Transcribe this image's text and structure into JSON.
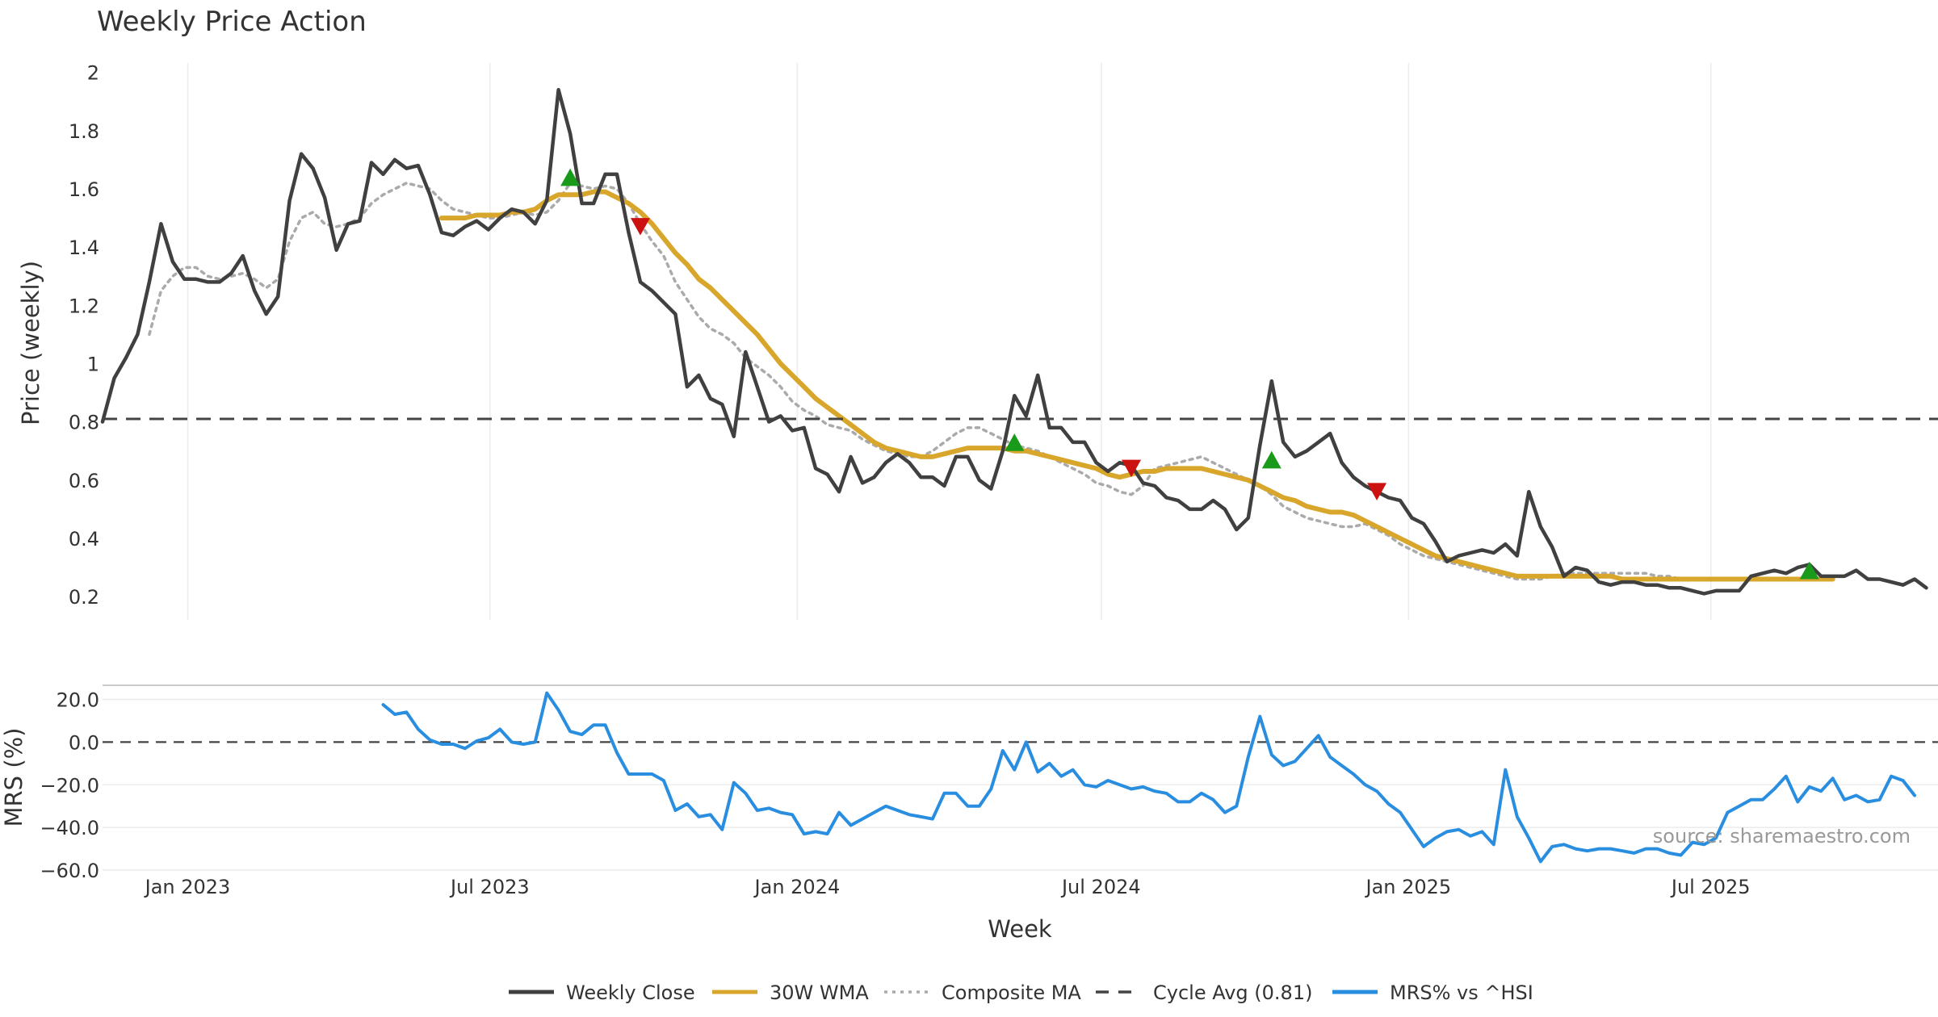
{
  "chart_data": [
    {
      "type": "line",
      "title": "Weekly Price Action",
      "ylabel": "Price (weekly)",
      "ylim": [
        0.12,
        2.06
      ],
      "yticks": [
        0.2,
        0.4,
        0.6,
        0.8,
        1,
        1.2,
        1.4,
        1.6,
        1.8,
        2
      ],
      "ytick_labels": [
        "0.2",
        "0.4",
        "0.6",
        "0.8",
        "1",
        "1.2",
        "1.4",
        "1.6",
        "1.8",
        "2"
      ],
      "x_start": "2022-11-11",
      "x_end": "2025-11-14",
      "x_step_weeks": 1,
      "series": [
        {
          "name": "Weekly Close",
          "color": "#404040",
          "values": [
            0.8,
            0.95,
            1.02,
            1.1,
            1.28,
            1.48,
            1.35,
            1.29,
            1.29,
            1.28,
            1.28,
            1.31,
            1.37,
            1.25,
            1.17,
            1.23,
            1.56,
            1.72,
            1.67,
            1.57,
            1.39,
            1.48,
            1.49,
            1.69,
            1.65,
            1.7,
            1.67,
            1.68,
            1.58,
            1.45,
            1.44,
            1.47,
            1.49,
            1.46,
            1.5,
            1.53,
            1.52,
            1.48,
            1.56,
            1.94,
            1.79,
            1.55,
            1.55,
            1.65,
            1.65,
            1.45,
            1.28,
            1.25,
            1.21,
            1.17,
            0.92,
            0.96,
            0.88,
            0.86,
            0.75,
            1.04,
            0.92,
            0.8,
            0.82,
            0.77,
            0.78,
            0.64,
            0.62,
            0.56,
            0.68,
            0.59,
            0.61,
            0.66,
            0.69,
            0.66,
            0.61,
            0.61,
            0.58,
            0.68,
            0.68,
            0.6,
            0.57,
            0.7,
            0.89,
            0.82,
            0.96,
            0.78,
            0.78,
            0.73,
            0.73,
            0.66,
            0.63,
            0.66,
            0.65,
            0.59,
            0.58,
            0.54,
            0.53,
            0.5,
            0.5,
            0.53,
            0.5,
            0.43,
            0.47,
            0.72,
            0.94,
            0.73,
            0.68,
            0.7,
            0.73,
            0.76,
            0.66,
            0.61,
            0.58,
            0.56,
            0.54,
            0.53,
            0.47,
            0.45,
            0.39,
            0.32,
            0.34,
            0.35,
            0.36,
            0.35,
            0.38,
            0.34,
            0.56,
            0.44,
            0.37,
            0.27,
            0.3,
            0.29,
            0.25,
            0.24,
            0.25,
            0.25,
            0.24,
            0.24,
            0.23,
            0.23,
            0.22,
            0.21,
            0.22,
            0.22,
            0.22,
            0.27,
            0.28,
            0.29,
            0.28,
            0.3,
            0.31,
            0.27,
            0.27,
            0.27,
            0.29,
            0.26,
            0.26,
            0.25,
            0.24,
            0.26,
            0.23
          ]
        },
        {
          "name": "30W WMA",
          "color": "#d8a62b",
          "start_index": 29,
          "values": [
            1.5,
            1.5,
            1.5,
            1.51,
            1.51,
            1.51,
            1.52,
            1.52,
            1.53,
            1.56,
            1.58,
            1.58,
            1.58,
            1.59,
            1.59,
            1.57,
            1.55,
            1.52,
            1.48,
            1.43,
            1.38,
            1.34,
            1.29,
            1.26,
            1.22,
            1.18,
            1.14,
            1.1,
            1.05,
            1.0,
            0.96,
            0.92,
            0.88,
            0.85,
            0.82,
            0.79,
            0.76,
            0.73,
            0.71,
            0.7,
            0.69,
            0.68,
            0.68,
            0.69,
            0.7,
            0.71,
            0.71,
            0.71,
            0.71,
            0.7,
            0.7,
            0.69,
            0.68,
            0.67,
            0.66,
            0.65,
            0.64,
            0.62,
            0.61,
            0.62,
            0.63,
            0.63,
            0.64,
            0.64,
            0.64,
            0.64,
            0.63,
            0.62,
            0.61,
            0.6,
            0.58,
            0.56,
            0.54,
            0.53,
            0.51,
            0.5,
            0.49,
            0.49,
            0.48,
            0.46,
            0.44,
            0.42,
            0.4,
            0.38,
            0.36,
            0.34,
            0.33,
            0.32,
            0.31,
            0.3,
            0.29,
            0.28,
            0.27,
            0.27,
            0.27,
            0.27,
            0.27,
            0.27,
            0.27,
            0.27,
            0.27,
            0.26,
            0.26,
            0.26,
            0.26,
            0.26,
            0.26,
            0.26,
            0.26,
            0.26,
            0.26,
            0.26,
            0.26,
            0.26,
            0.26,
            0.26,
            0.26,
            0.26,
            0.26,
            0.26
          ]
        },
        {
          "name": "Composite MA",
          "color": "#aaaaaa",
          "start_index": 4,
          "values": [
            1.1,
            1.25,
            1.3,
            1.33,
            1.33,
            1.3,
            1.29,
            1.3,
            1.31,
            1.29,
            1.26,
            1.29,
            1.42,
            1.5,
            1.52,
            1.48,
            1.47,
            1.48,
            1.5,
            1.55,
            1.58,
            1.6,
            1.62,
            1.61,
            1.6,
            1.56,
            1.53,
            1.52,
            1.51,
            1.5,
            1.5,
            1.51,
            1.52,
            1.51,
            1.52,
            1.56,
            1.62,
            1.61,
            1.6,
            1.61,
            1.6,
            1.55,
            1.48,
            1.42,
            1.37,
            1.28,
            1.22,
            1.16,
            1.12,
            1.1,
            1.07,
            1.02,
            0.99,
            0.96,
            0.92,
            0.87,
            0.84,
            0.82,
            0.79,
            0.78,
            0.77,
            0.74,
            0.72,
            0.7,
            0.69,
            0.68,
            0.68,
            0.7,
            0.73,
            0.76,
            0.78,
            0.78,
            0.76,
            0.74,
            0.72,
            0.71,
            0.7,
            0.68,
            0.66,
            0.64,
            0.62,
            0.59,
            0.58,
            0.56,
            0.55,
            0.58,
            0.64,
            0.65,
            0.66,
            0.67,
            0.68,
            0.66,
            0.64,
            0.62,
            0.6,
            0.58,
            0.55,
            0.51,
            0.49,
            0.47,
            0.46,
            0.45,
            0.44,
            0.44,
            0.45,
            0.43,
            0.41,
            0.38,
            0.36,
            0.34,
            0.33,
            0.32,
            0.31,
            0.3,
            0.29,
            0.28,
            0.27,
            0.26,
            0.26,
            0.26,
            0.27,
            0.28,
            0.28,
            0.28,
            0.28,
            0.28,
            0.28,
            0.28,
            0.28,
            0.27,
            0.27,
            0.26,
            0.26,
            0.26,
            0.26
          ]
        },
        {
          "name": "Cycle Avg (0.81)",
          "color": "#444444",
          "constant": 0.81
        }
      ],
      "buy_signals": [
        {
          "index": 40,
          "value": 1.64
        },
        {
          "index": 78,
          "value": 0.73
        },
        {
          "index": 100,
          "value": 0.67
        },
        {
          "index": 146,
          "value": 0.29
        }
      ],
      "sell_signals": [
        {
          "index": 46,
          "value": 1.47
        },
        {
          "index": 88,
          "value": 0.64
        },
        {
          "index": 109,
          "value": 0.56
        }
      ],
      "buy_marker_color": "#1a9a1a",
      "sell_marker_color": "#cc1111"
    },
    {
      "type": "line",
      "ylabel": "MRS (%)",
      "ylim": [
        -60,
        27
      ],
      "yticks": [
        -60,
        -40,
        -20,
        0,
        20
      ],
      "ytick_labels": [
        "−60.0",
        "−40.0",
        "−20.0",
        "0.0",
        "20.0"
      ],
      "xlabel": "Week",
      "x_ticks": [
        "Jan 2023",
        "Jul 2023",
        "Jan 2024",
        "Jul 2024",
        "Jan 2025",
        "Jul 2025"
      ],
      "x_tick_dates": [
        "2023-01-01",
        "2023-07-01",
        "2024-01-01",
        "2024-07-01",
        "2025-01-01",
        "2025-07-01"
      ],
      "zero_line": 0,
      "series": [
        {
          "name": "MRS% vs ^HSI",
          "color": "#2a8ee0",
          "start_index": 24,
          "values": [
            17.5,
            13,
            14,
            6,
            1,
            -1,
            -1,
            -3,
            0.5,
            2,
            6,
            0,
            -1,
            0,
            23,
            15,
            5,
            3.5,
            8,
            8,
            -5,
            -15,
            -15,
            -15,
            -18,
            -32,
            -29,
            -35,
            -34,
            -41,
            -19,
            -24,
            -32,
            -31,
            -33,
            -34,
            -43,
            -42,
            -43,
            -33,
            -39,
            -36,
            -33,
            -30,
            -32,
            -34,
            -35,
            -36,
            -24,
            -24,
            -30,
            -30,
            -22,
            -4,
            -13,
            0,
            -14,
            -10,
            -16,
            -13,
            -20,
            -21,
            -18,
            -20,
            -22,
            -21,
            -23,
            -24,
            -28,
            -28,
            -24,
            -27,
            -33,
            -30,
            -7,
            12,
            -6,
            -11,
            -9,
            -3,
            3,
            -7,
            -11,
            -15,
            -20,
            -23,
            -29,
            -33,
            -41,
            -49,
            -45,
            -42,
            -41,
            -44,
            -42,
            -48,
            -13,
            -35,
            -45,
            -56,
            -49,
            -48,
            -50,
            -51,
            -50,
            -50,
            -51,
            -52,
            -50,
            -50,
            -52,
            -53,
            -47,
            -48,
            -45,
            -33,
            -30,
            -27,
            -27,
            -22,
            -16,
            -28,
            -21,
            -23,
            -17,
            -27,
            -25,
            -28,
            -27,
            -16,
            -18,
            -25
          ]
        }
      ],
      "annotation": "source: sharemaestro.com"
    }
  ],
  "legend": [
    {
      "label": "Weekly Close",
      "style": "solid",
      "color": "#404040"
    },
    {
      "label": "30W WMA",
      "style": "solid",
      "color": "#d8a62b"
    },
    {
      "label": "Composite MA",
      "style": "dotted",
      "color": "#aaaaaa"
    },
    {
      "label": "Cycle Avg (0.81)",
      "style": "dashed",
      "color": "#444444"
    },
    {
      "label": "MRS% vs ^HSI",
      "style": "solid",
      "color": "#2a8ee0"
    }
  ]
}
